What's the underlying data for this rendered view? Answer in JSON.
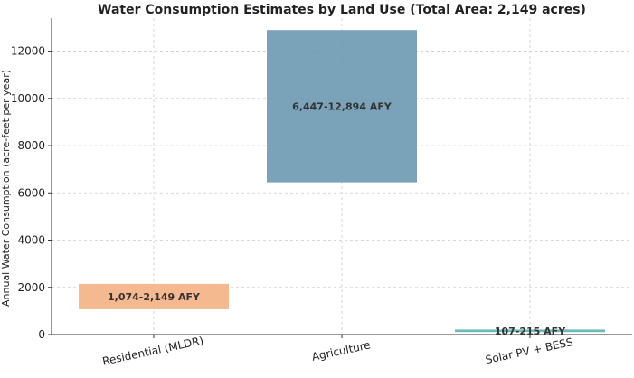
{
  "colors": {
    "residential": "#f4b183",
    "agriculture": "#6b98b0",
    "solar": "#5bb5b0",
    "grid": "#cccccc",
    "axis": "#333333"
  },
  "chart_data": {
    "type": "bar",
    "subtype": "floating-range",
    "title": "Water Consumption Estimates by Land Use (Total Area: 2,149 acres)",
    "xlabel": "",
    "ylabel": "Annual Water Consumption (acre-feet per year)",
    "ylim": [
      0,
      13400
    ],
    "yticks": [
      0,
      2000,
      4000,
      6000,
      8000,
      10000,
      12000
    ],
    "grid": true,
    "categories": [
      "Residential (MLDR)",
      "Agriculture",
      "Solar PV + BESS"
    ],
    "ranges": [
      {
        "category": "Residential (MLDR)",
        "low": 1074,
        "high": 2149,
        "label": "1,074-2,149 AFY",
        "color": "#f4b183"
      },
      {
        "category": "Agriculture",
        "low": 6447,
        "high": 12894,
        "label": "6,447-12,894 AFY",
        "color": "#6b98b0"
      },
      {
        "category": "Solar PV + BESS",
        "low": 107,
        "high": 215,
        "label": "107-215 AFY",
        "color": "#5bb5b0"
      }
    ]
  }
}
